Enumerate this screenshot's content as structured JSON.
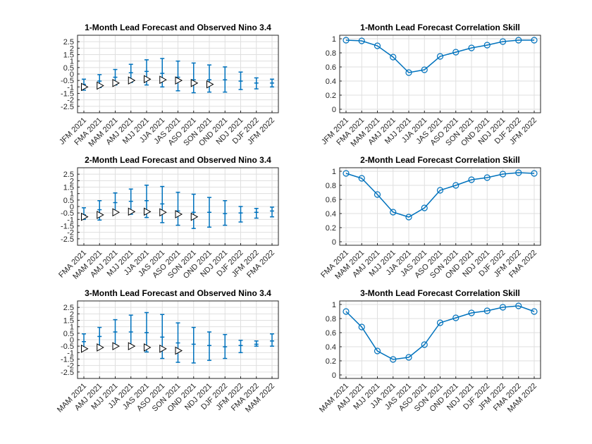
{
  "colors": {
    "series": "#0072bd",
    "observed_fill": "#ffffff",
    "observed_edge": "#000000",
    "grid": "#dfdfdf",
    "axis": "#262626"
  },
  "chart_data": [
    {
      "type": "errorbar",
      "title": "1-Month Lead Forecast and Observed Nino 3.4",
      "categories": [
        "JFM 2021",
        "FMA 2021",
        "MAM 2021",
        "AMJ 2021",
        "MJJ 2021",
        "JJA 2021",
        "JAS 2021",
        "ASO 2021",
        "SON 2021",
        "OND 2021",
        "NDJ 2021",
        "DJF 2022",
        "JFM 2022"
      ],
      "forecast_mean": [
        -0.8,
        -0.55,
        -0.25,
        0.1,
        0.2,
        0.05,
        -0.25,
        -0.45,
        -0.45,
        -0.45,
        -0.55,
        -0.7,
        -0.7
      ],
      "forecast_lower": [
        -1.25,
        -1.05,
        -0.85,
        -0.65,
        -0.85,
        -1.0,
        -1.3,
        -1.45,
        -1.4,
        -1.4,
        -1.2,
        -1.15,
        -1.0
      ],
      "forecast_upper": [
        -0.4,
        -0.05,
        0.35,
        0.75,
        1.1,
        1.2,
        1.0,
        0.85,
        0.7,
        0.55,
        0.15,
        -0.3,
        -0.4
      ],
      "observed": [
        -1.0,
        -0.9,
        -0.7,
        -0.5,
        -0.4,
        -0.45,
        -0.5,
        -0.7,
        -0.8,
        null,
        null,
        null,
        null
      ],
      "yticks": [
        -2.5,
        -2,
        -1.5,
        -1,
        -0.5,
        0,
        0.5,
        1,
        1.5,
        2,
        2.5
      ],
      "ylim": [
        -3,
        3
      ],
      "grid": true
    },
    {
      "type": "line",
      "title": "1-Month Lead Forecast Correlation Skill",
      "categories": [
        "JFM 2021",
        "FMA 2021",
        "MAM 2021",
        "AMJ 2021",
        "MJJ 2021",
        "JJA 2021",
        "JAS 2021",
        "ASO 2021",
        "SON 2021",
        "OND 2021",
        "NDJ 2021",
        "DJF 2022",
        "JFM 2022"
      ],
      "values": [
        0.98,
        0.97,
        0.9,
        0.74,
        0.52,
        0.56,
        0.75,
        0.81,
        0.87,
        0.91,
        0.96,
        0.98,
        0.98
      ],
      "yticks": [
        0,
        0.2,
        0.4,
        0.6,
        0.8,
        1
      ],
      "ylim": [
        -0.05,
        1.05
      ],
      "grid": true
    },
    {
      "type": "errorbar",
      "title": "2-Month Lead Forecast and Observed Nino 3.4",
      "categories": [
        "FMA 2021",
        "MAM 2021",
        "AMJ 2021",
        "MJJ 2021",
        "JJA 2021",
        "JAS 2021",
        "ASO 2021",
        "SON 2021",
        "OND 2021",
        "NDJ 2021",
        "DJF 2022",
        "JFM 2022",
        "FMA 2022"
      ],
      "forecast_mean": [
        -0.65,
        -0.25,
        0.3,
        0.4,
        0.45,
        0.2,
        -0.35,
        -0.45,
        -0.45,
        -0.55,
        -0.5,
        -0.45,
        -0.35
      ],
      "forecast_lower": [
        -1.0,
        -1.05,
        -0.5,
        -0.6,
        -0.85,
        -1.25,
        -1.45,
        -1.7,
        -1.6,
        -1.45,
        -1.2,
        -0.9,
        -0.8
      ],
      "forecast_upper": [
        -0.1,
        0.45,
        1.05,
        1.35,
        1.65,
        1.55,
        1.1,
        0.95,
        0.7,
        0.45,
        0.0,
        -0.15,
        -0.05
      ],
      "observed": [
        -0.8,
        -0.65,
        -0.45,
        -0.4,
        -0.4,
        -0.45,
        -0.6,
        -0.8,
        null,
        null,
        null,
        null,
        null
      ],
      "yticks": [
        -2.5,
        -2,
        -1.5,
        -1,
        -0.5,
        0,
        0.5,
        1,
        1.5,
        2,
        2.5
      ],
      "ylim": [
        -3,
        3
      ],
      "grid": true
    },
    {
      "type": "line",
      "title": "2-Month Lead Forecast Correlation Skill",
      "categories": [
        "FMA 2021",
        "MAM 2021",
        "AMJ 2021",
        "MJJ 2021",
        "JJA 2021",
        "JAS 2021",
        "ASO 2021",
        "SON 2021",
        "OND 2021",
        "NDJ 2021",
        "DJF 2022",
        "JFM 2022",
        "FMA 2022"
      ],
      "values": [
        0.97,
        0.9,
        0.67,
        0.42,
        0.35,
        0.48,
        0.73,
        0.8,
        0.88,
        0.91,
        0.96,
        0.98,
        0.97
      ],
      "yticks": [
        0,
        0.2,
        0.4,
        0.6,
        0.8,
        1
      ],
      "ylim": [
        -0.05,
        1.05
      ],
      "grid": true
    },
    {
      "type": "errorbar",
      "title": "3-Month Lead Forecast and Observed Nino 3.4",
      "categories": [
        "MAM 2021",
        "AMJ 2021",
        "MJJ 2021",
        "JJA 2021",
        "JAS 2021",
        "ASO 2021",
        "SON 2021",
        "OND 2021",
        "NDJ 2021",
        "DJF 2022",
        "JFM 2022",
        "FMA 2022",
        "MAM 2022"
      ],
      "forecast_mean": [
        -0.15,
        0.25,
        0.6,
        0.6,
        0.55,
        0.2,
        -0.25,
        -0.35,
        -0.45,
        -0.55,
        -0.45,
        -0.35,
        -0.1
      ],
      "forecast_lower": [
        -0.75,
        -0.6,
        -0.4,
        -0.55,
        -0.95,
        -1.45,
        -1.75,
        -1.8,
        -1.6,
        -1.45,
        -1.0,
        -0.5,
        -0.5
      ],
      "forecast_upper": [
        0.45,
        0.95,
        1.55,
        1.9,
        2.1,
        1.95,
        1.3,
        0.95,
        0.6,
        0.4,
        -0.05,
        -0.1,
        0.45
      ],
      "observed": [
        -0.7,
        -0.6,
        -0.5,
        -0.5,
        -0.6,
        -0.7,
        -0.85,
        null,
        null,
        null,
        null,
        null,
        null
      ],
      "yticks": [
        -2.5,
        -2,
        -1.5,
        -1,
        -0.5,
        0,
        0.5,
        1,
        1.5,
        2,
        2.5
      ],
      "ylim": [
        -3,
        3
      ],
      "grid": true
    },
    {
      "type": "line",
      "title": "3-Month Lead Forecast Correlation Skill",
      "categories": [
        "MAM 2021",
        "AMJ 2021",
        "MJJ 2021",
        "JJA 2021",
        "JAS 2021",
        "ASO 2021",
        "SON 2021",
        "OND 2021",
        "NDJ 2021",
        "DJF 2022",
        "JFM 2022",
        "FMA 2022",
        "MAM 2022"
      ],
      "values": [
        0.9,
        0.68,
        0.34,
        0.22,
        0.25,
        0.43,
        0.74,
        0.81,
        0.88,
        0.91,
        0.96,
        0.98,
        0.9
      ],
      "yticks": [
        0,
        0.2,
        0.4,
        0.6,
        0.8,
        1
      ],
      "ylim": [
        -0.05,
        1.05
      ],
      "grid": true
    }
  ]
}
